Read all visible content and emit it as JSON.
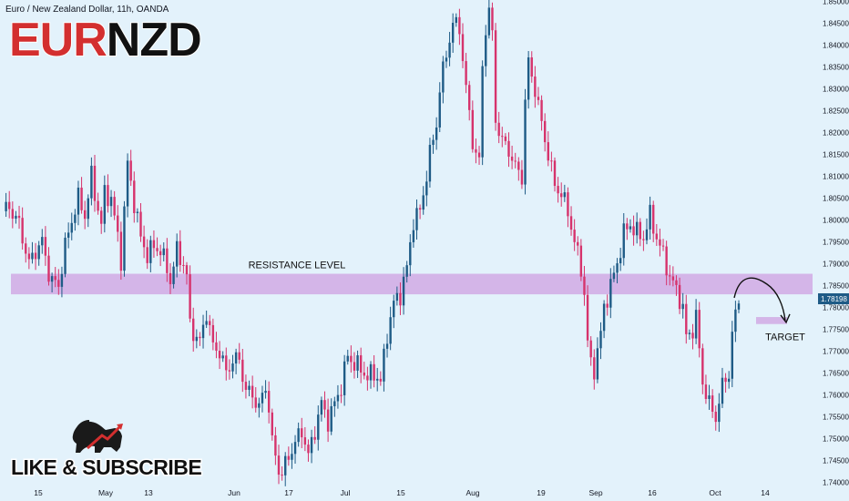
{
  "header": {
    "symbol_line": "Euro / New Zealand Dollar, 11h, OANDA"
  },
  "title": {
    "part1": "EUR",
    "part2": "NZD",
    "color1": "#d32f2f",
    "color2": "#111111"
  },
  "cta": {
    "label": "LIKE & SUBSCRIBE",
    "logo_icon": "bull-logo-icon"
  },
  "colors": {
    "background": "#e3f2fb",
    "up_candle": "#1e5b86",
    "down_candle": "#d6336c",
    "zone": "#d2aee6",
    "price_label_bg": "#1e5b86"
  },
  "chart_data": {
    "type": "candlestick",
    "symbol": "EURNZD",
    "timeframe": "11h",
    "ylim": [
      1.74,
      1.85
    ],
    "y_ticks": [
      "1.85000",
      "1.84500",
      "1.84000",
      "1.83500",
      "1.83000",
      "1.82500",
      "1.82000",
      "1.81500",
      "1.81000",
      "1.80500",
      "1.80000",
      "1.79500",
      "1.79000",
      "1.78500",
      "1.78000",
      "1.77500",
      "1.77000",
      "1.76500",
      "1.76000",
      "1.75500",
      "1.75000",
      "1.74500",
      "1.74000"
    ],
    "x_ticks": [
      "15",
      "May",
      "13",
      "Jun",
      "17",
      "Jul",
      "15",
      "Aug",
      "19",
      "Sep",
      "16",
      "Oct",
      "14"
    ],
    "last_price": "1.78198",
    "close_path": [
      [
        0,
        1.802
      ],
      [
        2,
        1.803
      ],
      [
        5,
        1.799
      ],
      [
        8,
        1.79
      ],
      [
        10,
        1.793
      ],
      [
        12,
        1.795
      ],
      [
        14,
        1.788
      ],
      [
        15,
        1.786
      ],
      [
        17,
        1.785
      ],
      [
        19,
        1.794
      ],
      [
        21,
        1.8
      ],
      [
        23,
        1.805
      ],
      [
        25,
        1.801
      ],
      [
        27,
        1.81
      ],
      [
        28,
        1.806
      ],
      [
        30,
        1.799
      ],
      [
        31,
        1.806
      ],
      [
        33,
        1.805
      ],
      [
        35,
        1.796
      ],
      [
        36,
        1.791
      ],
      [
        38,
        1.813
      ],
      [
        40,
        1.804
      ],
      [
        42,
        1.796
      ],
      [
        44,
        1.792
      ],
      [
        46,
        1.794
      ],
      [
        48,
        1.793
      ],
      [
        50,
        1.789
      ],
      [
        51,
        1.786
      ],
      [
        53,
        1.793
      ],
      [
        55,
        1.79
      ],
      [
        56,
        1.787
      ],
      [
        57,
        1.776
      ],
      [
        59,
        1.773
      ],
      [
        60,
        1.772
      ],
      [
        62,
        1.779
      ],
      [
        64,
        1.771
      ],
      [
        66,
        1.77
      ],
      [
        68,
        1.765
      ],
      [
        70,
        1.768
      ],
      [
        72,
        1.768
      ],
      [
        74,
        1.761
      ],
      [
        76,
        1.76
      ],
      [
        78,
        1.757
      ],
      [
        80,
        1.762
      ],
      [
        81,
        1.757
      ],
      [
        82,
        1.749
      ],
      [
        84,
        1.743
      ],
      [
        85,
        1.742
      ],
      [
        87,
        1.746
      ],
      [
        89,
        1.749
      ],
      [
        91,
        1.752
      ],
      [
        93,
        1.746
      ],
      [
        95,
        1.752
      ],
      [
        97,
        1.758
      ],
      [
        99,
        1.754
      ],
      [
        101,
        1.758
      ],
      [
        103,
        1.762
      ],
      [
        105,
        1.769
      ],
      [
        107,
        1.767
      ],
      [
        109,
        1.766
      ],
      [
        111,
        1.764
      ],
      [
        113,
        1.765
      ],
      [
        115,
        1.763
      ],
      [
        117,
        1.774
      ],
      [
        119,
        1.781
      ],
      [
        121,
        1.783
      ],
      [
        123,
        1.789
      ],
      [
        125,
        1.8
      ],
      [
        127,
        1.802
      ],
      [
        128,
        1.806
      ],
      [
        130,
        1.815
      ],
      [
        132,
        1.822
      ],
      [
        133,
        1.83
      ],
      [
        135,
        1.838
      ],
      [
        137,
        1.845
      ],
      [
        139,
        1.844
      ],
      [
        141,
        1.83
      ],
      [
        143,
        1.818
      ],
      [
        145,
        1.813
      ],
      [
        146,
        1.835
      ],
      [
        147,
        1.844
      ],
      [
        148,
        1.848
      ],
      [
        149,
        1.842
      ],
      [
        150,
        1.823
      ],
      [
        152,
        1.818
      ],
      [
        154,
        1.816
      ],
      [
        156,
        1.812
      ],
      [
        158,
        1.81
      ],
      [
        159,
        1.827
      ],
      [
        160,
        1.836
      ],
      [
        162,
        1.83
      ],
      [
        164,
        1.822
      ],
      [
        166,
        1.815
      ],
      [
        168,
        1.808
      ],
      [
        170,
        1.806
      ],
      [
        172,
        1.802
      ],
      [
        174,
        1.795
      ],
      [
        176,
        1.789
      ],
      [
        177,
        1.783
      ],
      [
        178,
        1.772
      ],
      [
        179,
        1.767
      ],
      [
        180,
        1.766
      ],
      [
        182,
        1.774
      ],
      [
        183,
        1.78
      ],
      [
        185,
        1.785
      ],
      [
        187,
        1.79
      ],
      [
        189,
        1.797
      ],
      [
        191,
        1.799
      ],
      [
        193,
        1.797
      ],
      [
        195,
        1.796
      ],
      [
        197,
        1.801
      ],
      [
        199,
        1.796
      ],
      [
        201,
        1.792
      ],
      [
        203,
        1.787
      ],
      [
        205,
        1.784
      ],
      [
        207,
        1.78
      ],
      [
        208,
        1.773
      ],
      [
        210,
        1.775
      ],
      [
        211,
        1.778
      ],
      [
        212,
        1.77
      ],
      [
        213,
        1.763
      ],
      [
        215,
        1.758
      ],
      [
        216,
        1.756
      ],
      [
        217,
        1.755
      ],
      [
        219,
        1.762
      ],
      [
        221,
        1.765
      ],
      [
        222,
        1.774
      ],
      [
        223,
        1.778
      ],
      [
        224,
        1.782
      ]
    ],
    "annotations": [
      {
        "type": "zone",
        "label": "RESISTANCE LEVEL",
        "y_top": 1.7877,
        "y_bottom": 1.783
      },
      {
        "type": "zone",
        "label": "TARGET",
        "y_top": 1.7778,
        "y_bottom": 1.7762
      },
      {
        "type": "arrow",
        "label": "",
        "from_price": 1.7822,
        "to_price": 1.777
      }
    ]
  }
}
